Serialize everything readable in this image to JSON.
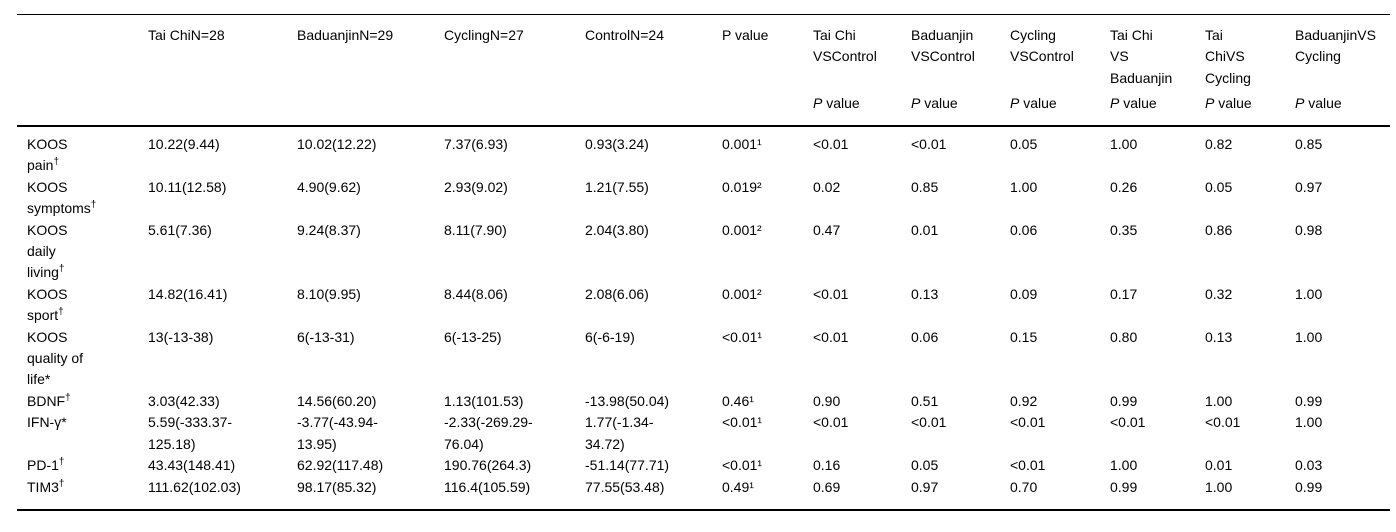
{
  "table": {
    "columns": [
      {
        "label": "",
        "sub": ""
      },
      {
        "label": "Tai ChiN=28",
        "sub": ""
      },
      {
        "label": "BaduanjinN=29",
        "sub": ""
      },
      {
        "label": "CyclingN=27",
        "sub": ""
      },
      {
        "label": "ControlN=24",
        "sub": ""
      },
      {
        "label": "P value",
        "sub": ""
      },
      {
        "label": "Tai Chi\nVSControl",
        "sub": "P value"
      },
      {
        "label": "Baduanjin\nVSControl",
        "sub": "P value"
      },
      {
        "label": "Cycling\nVSControl",
        "sub": "P value"
      },
      {
        "label": "Tai Chi\nVS\nBaduanjin",
        "sub": "P value"
      },
      {
        "label": "Tai\nChiVS\nCycling",
        "sub": "P value"
      },
      {
        "label": "BaduanjinVS\nCycling",
        "sub": "P value"
      }
    ],
    "rows": [
      {
        "label": "KOOS\npain†",
        "cells": [
          "10.22(9.44)",
          "10.02(12.22)",
          "7.37(6.93)",
          "0.93(3.24)",
          "0.001¹",
          "<0.01",
          "<0.01",
          "0.05",
          "1.00",
          "0.82",
          "0.85"
        ]
      },
      {
        "label": "KOOS\nsymptoms†",
        "cells": [
          "10.11(12.58)",
          "4.90(9.62)",
          "2.93(9.02)",
          "1.21(7.55)",
          "0.019²",
          "0.02",
          "0.85",
          "1.00",
          "0.26",
          "0.05",
          "0.97"
        ]
      },
      {
        "label": "KOOS\ndaily\nliving†",
        "cells": [
          "5.61(7.36)",
          "9.24(8.37)",
          "8.11(7.90)",
          "2.04(3.80)",
          "0.001²",
          "0.47",
          "0.01",
          "0.06",
          "0.35",
          "0.86",
          "0.98"
        ]
      },
      {
        "label": "KOOS\nsport†",
        "cells": [
          "14.82(16.41)",
          "8.10(9.95)",
          "8.44(8.06)",
          "2.08(6.06)",
          "0.001²",
          "<0.01",
          "0.13",
          "0.09",
          "0.17",
          "0.32",
          "1.00"
        ]
      },
      {
        "label": "KOOS\nquality of\nlife*",
        "cells": [
          "13(-13-38)",
          "6(-13-31)",
          "6(-13-25)",
          "6(-6-19)",
          "<0.01¹",
          "<0.01",
          "0.06",
          "0.15",
          "0.80",
          "0.13",
          "1.00"
        ]
      },
      {
        "label": "BDNF†",
        "cells": [
          "3.03(42.33)",
          "14.56(60.20)",
          "1.13(101.53)",
          "-13.98(50.04)",
          "0.46¹",
          "0.90",
          "0.51",
          "0.92",
          "0.99",
          "1.00",
          "0.99"
        ]
      },
      {
        "label": "IFN-γ*",
        "cells": [
          "5.59(-333.37-\n125.18)",
          "-3.77(-43.94-\n13.95)",
          "-2.33(-269.29-\n76.04)",
          "1.77(-1.34-\n34.72)",
          "<0.01¹",
          "<0.01",
          "<0.01",
          "<0.01",
          "<0.01",
          "<0.01",
          "1.00"
        ]
      },
      {
        "label": "PD-1†",
        "cells": [
          "43.43(148.41)",
          "62.92(117.48)",
          "190.76(264.3)",
          "-51.14(77.71)",
          "<0.01¹",
          "0.16",
          "0.05",
          "<0.01",
          "1.00",
          "0.01",
          "0.03"
        ]
      },
      {
        "label": "TIM3†",
        "cells": [
          "111.62(102.03)",
          "98.17(85.32)",
          "116.4(105.59)",
          "77.55(53.48)",
          "0.49¹",
          "0.69",
          "0.97",
          "0.70",
          "0.99",
          "1.00",
          "0.99"
        ]
      }
    ]
  }
}
